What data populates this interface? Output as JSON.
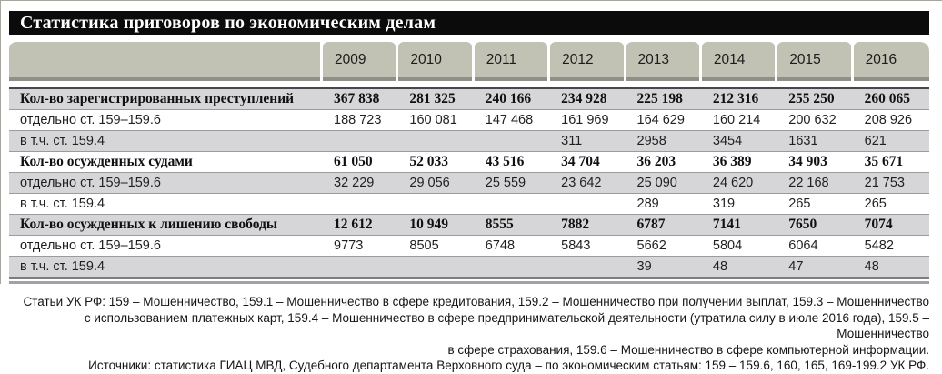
{
  "title": "Статистика приговоров по экономическим делам",
  "colors": {
    "title_bg": "#0b0b0b",
    "title_text": "#ffffff",
    "header_bg": "#c2c2b4",
    "header_shadow": "#90908a",
    "stripe_gray": "#d6d6d8",
    "row_white": "#ffffff"
  },
  "chart_data": {
    "type": "table",
    "title": "Статистика приговоров по экономическим делам",
    "columns": [
      "2009",
      "2010",
      "2011",
      "2012",
      "2013",
      "2014",
      "2015",
      "2016"
    ],
    "rows": [
      {
        "label": "Кол-во зарегистрированных преступлений",
        "style": "bold",
        "values": [
          "367 838",
          "281 325",
          "240 166",
          "234 928",
          "225 198",
          "212 316",
          "255 250",
          "260 065"
        ]
      },
      {
        "label": "отдельно ст. 159–159.6",
        "style": "plain",
        "values": [
          "188 723",
          "160 081",
          "147 468",
          "161 969",
          "164 629",
          "160 214",
          "200 632",
          "208 926"
        ]
      },
      {
        "label": "в т.ч. ст. 159.4",
        "style": "plain",
        "values": [
          "",
          "",
          "",
          "311",
          "2958",
          "3454",
          "1631",
          "621"
        ]
      },
      {
        "label": "Кол-во осужденных судами",
        "style": "bold",
        "values": [
          "61 050",
          "52 033",
          "43 516",
          "34 704",
          "36 203",
          "36 389",
          "34 903",
          "35 671"
        ]
      },
      {
        "label": "отдельно ст. 159–159.6",
        "style": "plain",
        "values": [
          "32 229",
          "29 056",
          "25 559",
          "23 642",
          "25 090",
          "24 620",
          "22 168",
          "21 753"
        ]
      },
      {
        "label": "в т.ч. ст. 159.4",
        "style": "plain",
        "values": [
          "",
          "",
          "",
          "",
          "289",
          "319",
          "265",
          "265"
        ]
      },
      {
        "label": "Кол-во осужденных к лишению свободы",
        "style": "bold",
        "values": [
          "12 612",
          "10 949",
          "8555",
          "7882",
          "6787",
          "7141",
          "7650",
          "7074"
        ]
      },
      {
        "label": "отдельно ст. 159–159.6",
        "style": "plain",
        "values": [
          "9773",
          "8505",
          "6748",
          "5843",
          "5662",
          "5804",
          "6064",
          "5482"
        ]
      },
      {
        "label": "в т.ч. ст. 159.4",
        "style": "plain",
        "values": [
          "",
          "",
          "",
          "",
          "39",
          "48",
          "47",
          "48"
        ]
      }
    ]
  },
  "footer": {
    "lines": [
      "Статьи УК РФ: 159 – Мошенничество, 159.1 – Мошенничество в сфере кредитования, 159.2 – Мошенничество при получении выплат, 159.3 – Мошенничество",
      "с использованием платежных карт, 159.4 – Мошенничество в сфере предпринимательской деятельности (утратила силу в июле 2016 года), 159.5 – Мошенничество",
      "в сфере страхования, 159.6 – Мошенничество в сфере компьютерной информации.",
      "Источники: статистика ГИАЦ МВД, Судебного департамента Верховного суда – по экономическим статьям: 159 – 159.6, 160, 165, 169-199.2 УК РФ."
    ]
  }
}
